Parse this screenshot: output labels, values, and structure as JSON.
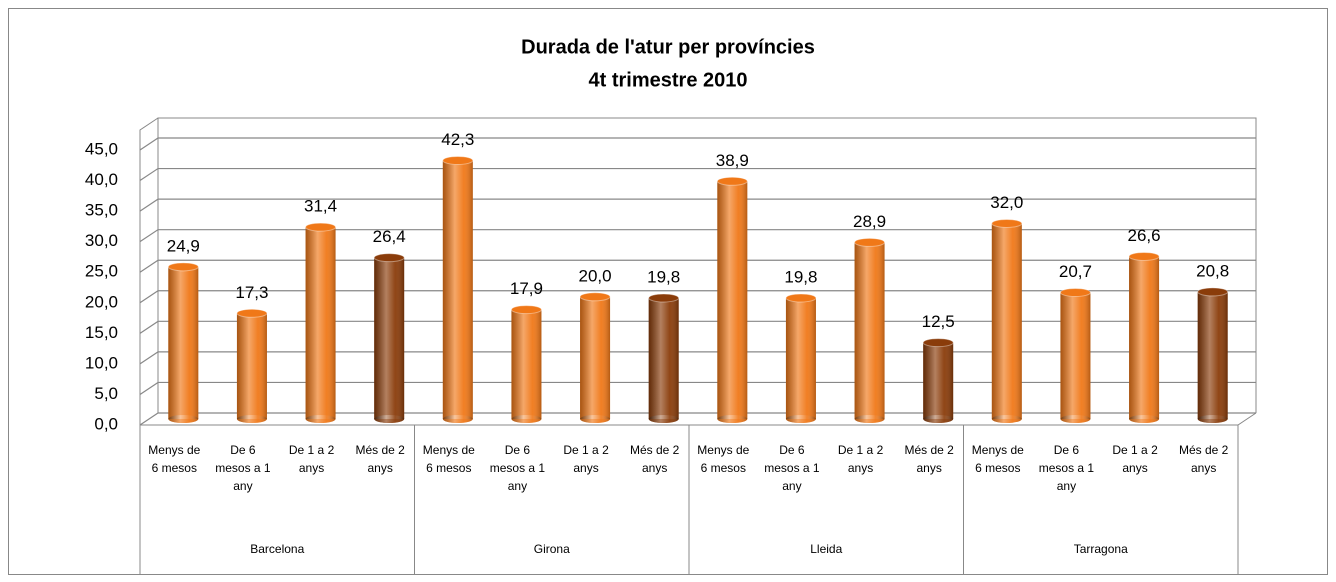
{
  "chart_data": {
    "type": "bar",
    "title": "Durada de l'atur per províncies",
    "subtitle": "4t trimestre 2010",
    "groups": [
      "Barcelona",
      "Girona",
      "Lleida",
      "Tarragona"
    ],
    "categories": [
      "Menys de 6 mesos",
      "De 6 mesos a 1 any",
      "De 1 a 2 anys",
      "Més de 2 anys",
      "Menys de 6 mesos",
      "De 6 mesos a 1 any",
      "De 1 a 2 anys",
      "Més de 2 anys",
      "Menys de 6 mesos",
      "De 6 mesos a 1 any",
      "De 1 a 2 anys",
      "Més de 2 anys",
      "Menys de 6 mesos",
      "De 6 mesos a 1 any",
      "De 1 a 2 anys",
      "Més de 2 anys"
    ],
    "values": [
      24.9,
      17.3,
      31.4,
      26.4,
      42.3,
      17.9,
      20.0,
      19.8,
      38.9,
      19.8,
      28.9,
      12.5,
      32.0,
      20.7,
      26.6,
      20.8
    ],
    "value_labels": [
      "24,9",
      "17,3",
      "31,4",
      "26,4",
      "42,3",
      "17,9",
      "20,0",
      "19,8",
      "38,9",
      "19,8",
      "28,9",
      "12,5",
      "32,0",
      "20,7",
      "26,6",
      "20,8"
    ],
    "colors": [
      "#f07818",
      "#f07818",
      "#f07818",
      "#8a3c0a",
      "#f07818",
      "#f07818",
      "#f07818",
      "#8a3c0a",
      "#f07818",
      "#f07818",
      "#f07818",
      "#8a3c0a",
      "#f07818",
      "#f07818",
      "#f07818",
      "#8a3c0a"
    ],
    "ylim": [
      0,
      45
    ],
    "yticks": [
      {
        "value": 0,
        "label": "0,0"
      },
      {
        "value": 5,
        "label": "5,0"
      },
      {
        "value": 10,
        "label": "10,0"
      },
      {
        "value": 15,
        "label": "15,0"
      },
      {
        "value": 20,
        "label": "20,0"
      },
      {
        "value": 25,
        "label": "25,0"
      },
      {
        "value": 30,
        "label": "30,0"
      },
      {
        "value": 35,
        "label": "35,0"
      },
      {
        "value": 40,
        "label": "40,0"
      },
      {
        "value": 45,
        "label": "45,0"
      }
    ],
    "grid": true
  }
}
